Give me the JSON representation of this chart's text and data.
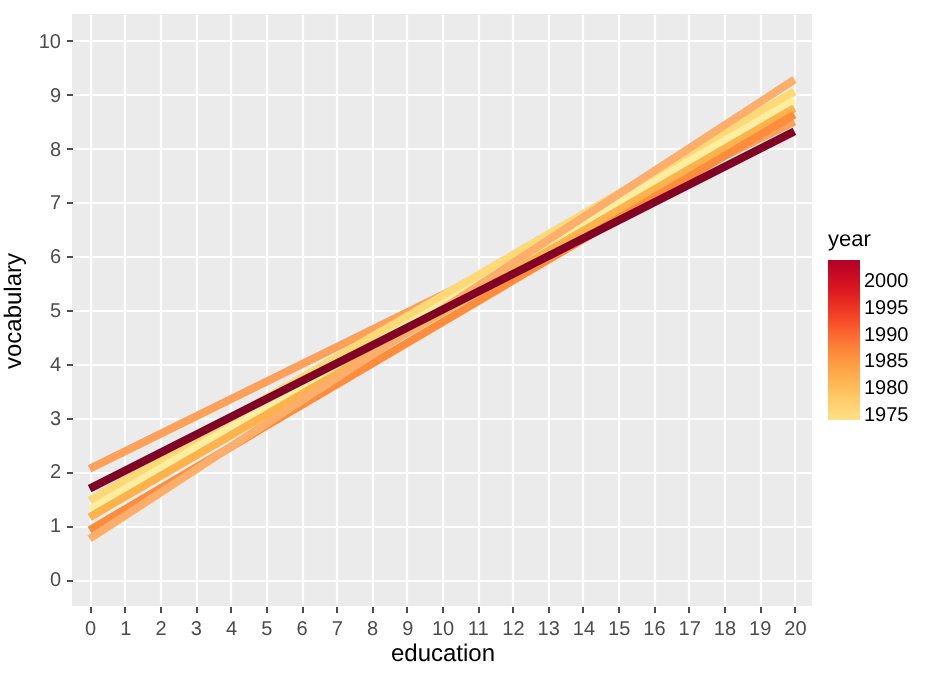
{
  "chart_data": {
    "type": "line",
    "xlabel": "education",
    "ylabel": "vocabulary",
    "clabel": "year",
    "xlim": [
      -0.5,
      20.5
    ],
    "ylim": [
      -0.5,
      10.5
    ],
    "xticks": [
      0,
      1,
      2,
      3,
      4,
      5,
      6,
      7,
      8,
      9,
      10,
      11,
      12,
      13,
      14,
      15,
      16,
      17,
      18,
      19,
      20
    ],
    "yticks": [
      0,
      1,
      2,
      3,
      4,
      5,
      6,
      7,
      8,
      9,
      10
    ],
    "grid": true,
    "clim": [
      1974,
      2004
    ],
    "cticks": [
      1975,
      1980,
      1985,
      1990,
      1995,
      2000
    ],
    "x": [
      0,
      20
    ],
    "series": [
      {
        "values": [
          2.05,
          8.5
        ],
        "color": "#fda05a"
      },
      {
        "values": [
          1.46,
          9.06
        ],
        "color": "#fed976"
      },
      {
        "values": [
          1.29,
          8.9
        ],
        "color": "#ffeda0"
      },
      {
        "values": [
          1.15,
          8.75
        ],
        "color": "#feb24c"
      },
      {
        "values": [
          0.91,
          8.63
        ],
        "color": "#fd8d3c"
      },
      {
        "values": [
          0.75,
          9.28
        ],
        "color": "#fdae6b"
      },
      {
        "values": [
          1.68,
          8.32
        ],
        "color": "#800026"
      }
    ]
  }
}
